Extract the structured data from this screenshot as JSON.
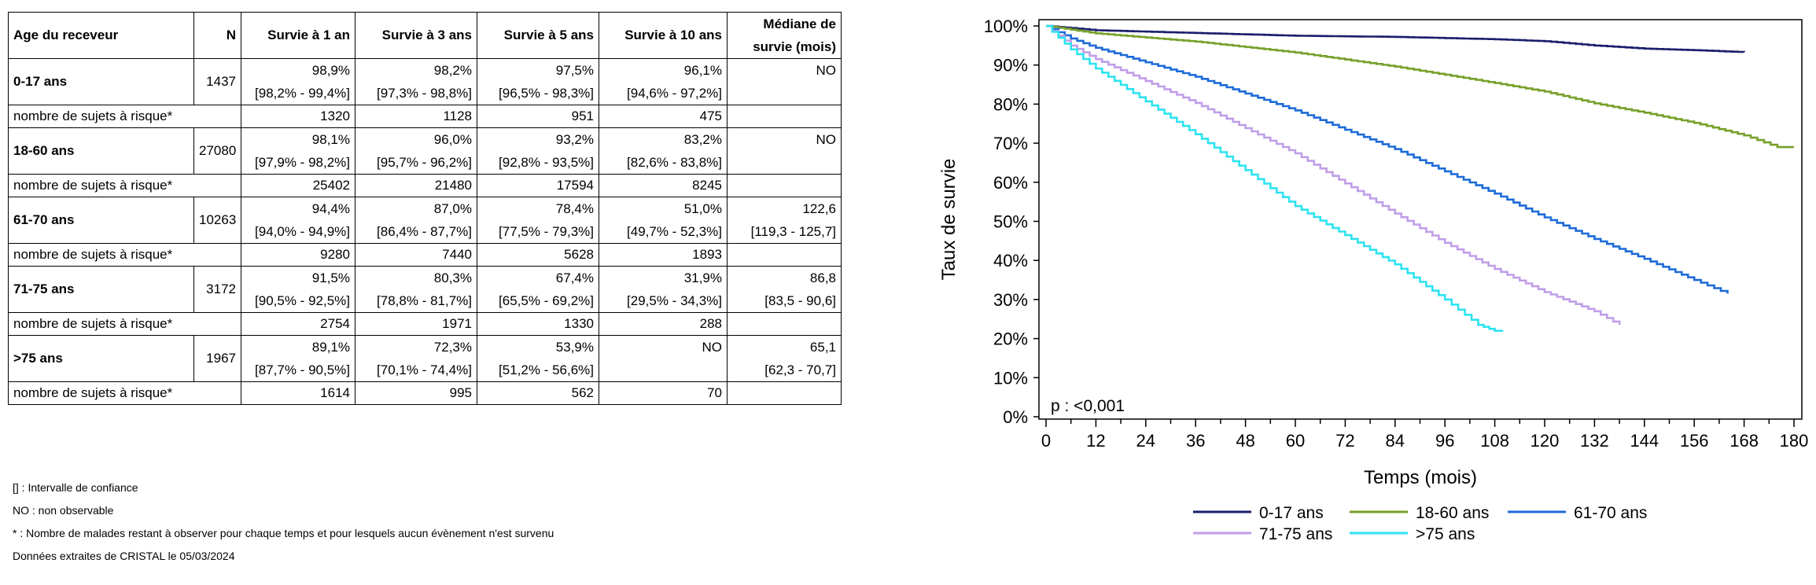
{
  "table": {
    "headers": [
      "Age du receveur",
      "N",
      "Survie à 1 an",
      "Survie à 3 ans",
      "Survie à 5 ans",
      "Survie à 10 ans",
      "Médiane de",
      "survie (mois)"
    ],
    "groups": [
      {
        "label": "0-17 ans",
        "n": "1437",
        "cells": [
          [
            "98,9%",
            "[98,2% - 99,4%]"
          ],
          [
            "98,2%",
            "[97,3% - 98,8%]"
          ],
          [
            "97,5%",
            "[96,5% - 98,3%]"
          ],
          [
            "96,1%",
            "[94,6% - 97,2%]"
          ]
        ],
        "median": [
          "NO",
          ""
        ],
        "risk_label": "nombre de sujets à risque*",
        "risk": [
          "1320",
          "1128",
          "951",
          "475"
        ]
      },
      {
        "label": "18-60 ans",
        "n": "27080",
        "cells": [
          [
            "98,1%",
            "[97,9% - 98,2%]"
          ],
          [
            "96,0%",
            "[95,7% - 96,2%]"
          ],
          [
            "93,2%",
            "[92,8% - 93,5%]"
          ],
          [
            "83,2%",
            "[82,6% - 83,8%]"
          ]
        ],
        "median": [
          "NO",
          ""
        ],
        "risk_label": "nombre de sujets à risque*",
        "risk": [
          "25402",
          "21480",
          "17594",
          "8245"
        ]
      },
      {
        "label": "61-70 ans",
        "n": "10263",
        "cells": [
          [
            "94,4%",
            "[94,0% - 94,9%]"
          ],
          [
            "87,0%",
            "[86,4% - 87,7%]"
          ],
          [
            "78,4%",
            "[77,5% - 79,3%]"
          ],
          [
            "51,0%",
            "[49,7% - 52,3%]"
          ]
        ],
        "median": [
          "122,6",
          "[119,3 - 125,7]"
        ],
        "risk_label": "nombre de sujets à risque*",
        "risk": [
          "9280",
          "7440",
          "5628",
          "1893"
        ]
      },
      {
        "label": "71-75 ans",
        "n": "3172",
        "cells": [
          [
            "91,5%",
            "[90,5% - 92,5%]"
          ],
          [
            "80,3%",
            "[78,8% - 81,7%]"
          ],
          [
            "67,4%",
            "[65,5% - 69,2%]"
          ],
          [
            "31,9%",
            "[29,5% - 34,3%]"
          ]
        ],
        "median": [
          "86,8",
          "[83,5 - 90,6]"
        ],
        "risk_label": "nombre de sujets à risque*",
        "risk": [
          "2754",
          "1971",
          "1330",
          "288"
        ]
      },
      {
        "label": ">75 ans",
        "n": "1967",
        "cells": [
          [
            "89,1%",
            "[87,7% - 90,5%]"
          ],
          [
            "72,3%",
            "[70,1% - 74,4%]"
          ],
          [
            "53,9%",
            "[51,2% - 56,6%]"
          ],
          [
            "NO",
            ""
          ]
        ],
        "median": [
          "65,1",
          "[62,3 - 70,7]"
        ],
        "risk_label": "nombre de sujets à risque*",
        "risk": [
          "1614",
          "995",
          "562",
          "70"
        ]
      }
    ]
  },
  "footnotes": [
    "[] : Intervalle de confiance",
    "NO : non observable",
    "* : Nombre de malades restant à observer pour chaque temps et pour lesquels aucun évènement n'est survenu",
    "Données extraites de CRISTAL le 05/03/2024"
  ],
  "chart_data": {
    "type": "line",
    "xlabel": "Temps (mois)",
    "ylabel": "Taux de survie",
    "annotation": "p : <0,001",
    "xlim": [
      0,
      180
    ],
    "ylim": [
      0,
      100
    ],
    "x_ticks": [
      0,
      12,
      24,
      36,
      48,
      60,
      72,
      84,
      96,
      108,
      120,
      132,
      144,
      156,
      168,
      180
    ],
    "y_ticks": [
      0,
      10,
      20,
      30,
      40,
      50,
      60,
      70,
      80,
      90,
      100
    ],
    "y_tick_labels": [
      "0%",
      "10%",
      "20%",
      "30%",
      "40%",
      "50%",
      "60%",
      "70%",
      "80%",
      "90%",
      "100%"
    ],
    "grid": false,
    "legend_position": "bottom",
    "series": [
      {
        "name": "0-17 ans",
        "color": "#1a1f6b",
        "x": [
          0,
          12,
          36,
          60,
          84,
          108,
          120,
          132,
          144,
          156,
          168
        ],
        "y": [
          100,
          98.9,
          98.2,
          97.5,
          97.2,
          96.6,
          96.1,
          95.0,
          94.2,
          93.8,
          93.3
        ]
      },
      {
        "name": "18-60 ans",
        "color": "#77a02a",
        "x": [
          0,
          12,
          36,
          60,
          84,
          108,
          120,
          132,
          144,
          156,
          168,
          176,
          180
        ],
        "y": [
          100,
          98.1,
          96.0,
          93.2,
          89.6,
          85.4,
          83.2,
          80.2,
          77.8,
          75.2,
          72.0,
          69.0,
          69.0
        ]
      },
      {
        "name": "61-70 ans",
        "color": "#1c6bd9",
        "x": [
          0,
          6,
          12,
          36,
          60,
          84,
          96,
          108,
          120,
          132,
          144,
          156,
          164
        ],
        "y": [
          100,
          96.8,
          94.4,
          87.0,
          78.4,
          68.5,
          62.8,
          57.1,
          51.0,
          45.5,
          40.4,
          35.0,
          31.5
        ]
      },
      {
        "name": "71-75 ans",
        "color": "#c09ee8",
        "x": [
          0,
          6,
          12,
          36,
          60,
          84,
          96,
          108,
          120,
          132,
          138
        ],
        "y": [
          100,
          95.0,
          91.5,
          80.3,
          67.4,
          52.0,
          44.5,
          37.8,
          31.9,
          27.0,
          23.5
        ]
      },
      {
        "name": ">75 ans",
        "color": "#2de3f0",
        "x": [
          0,
          6,
          12,
          36,
          60,
          84,
          96,
          104,
          108,
          110
        ],
        "y": [
          100,
          94.0,
          89.1,
          72.3,
          53.9,
          39.0,
          30.0,
          23.5,
          22.0,
          22.0
        ]
      }
    ]
  }
}
